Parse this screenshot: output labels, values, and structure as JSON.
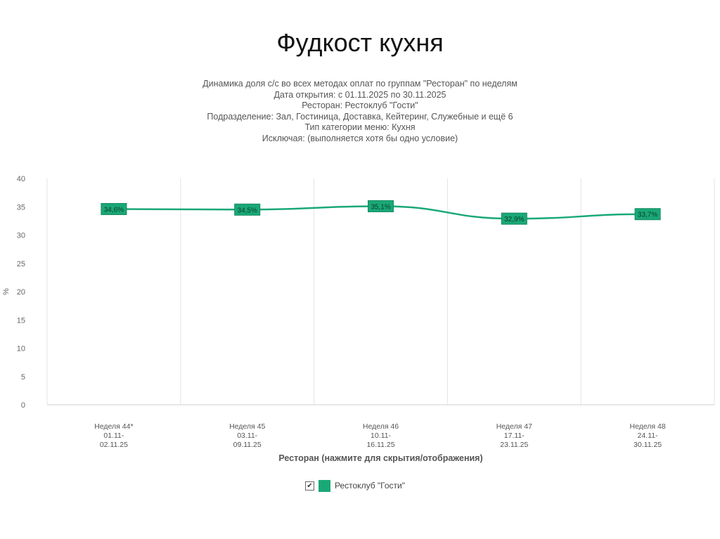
{
  "slide": {
    "title": "Фудкост кухня"
  },
  "chart_data": {
    "type": "line",
    "title_lines": [
      "Динамика доля с/с во всех методах оплат по группам \"Ресторан\" по неделям",
      "Дата открытия: с 01.11.2025 по 30.11.2025",
      "Ресторан: Рестоклуб \"Гости\"",
      "Подразделение: Зал, Гостиница, Доставка, Кейтеринг, Служебные и ещё 6",
      "Тип категории меню: Кухня",
      "Исключая: (выполняется хотя бы одно условие)"
    ],
    "categories": [
      [
        "Неделя 44*",
        "01.11-",
        "02.11.25"
      ],
      [
        "Неделя 45",
        "03.11-",
        "09.11.25"
      ],
      [
        "Неделя 46",
        "10.11-",
        "16.11.25"
      ],
      [
        "Неделя 47",
        "17.11-",
        "23.11.25"
      ],
      [
        "Неделя 48",
        "24.11-",
        "30.11.25"
      ]
    ],
    "series": [
      {
        "name": "Рестоклуб \"Гости\"",
        "values": [
          34.6,
          34.5,
          35.1,
          32.9,
          33.7
        ],
        "labels": [
          "34,6%",
          "34,5%",
          "35,1%",
          "32,9%",
          "33,7%"
        ],
        "color": "#1aa877"
      }
    ],
    "ylabel": "%",
    "xlabel": "Ресторан (нажмите для скрытия/отображения)",
    "ylim": [
      0,
      40
    ],
    "yticks": [
      0,
      5,
      10,
      15,
      20,
      25,
      30,
      35,
      40
    ],
    "grid": "vertical",
    "legend": {
      "position": "bottom-center",
      "checked": true,
      "check_glyph": "✔"
    }
  }
}
